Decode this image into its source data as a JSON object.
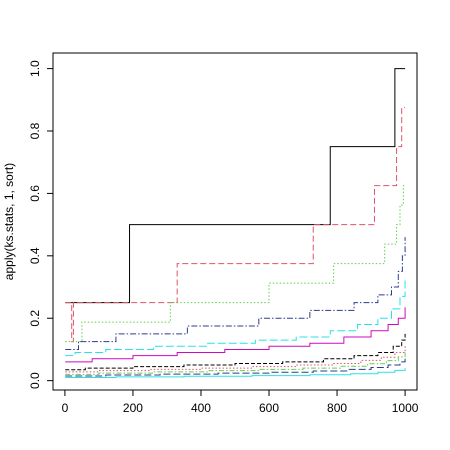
{
  "chart_data": {
    "type": "line",
    "title": "",
    "xlabel": "",
    "ylabel": "apply(ks.stats, 1, sort)",
    "xlim": [
      -35,
      1035
    ],
    "ylim": [
      -0.03,
      1.05
    ],
    "x_ticks": [
      0,
      200,
      400,
      600,
      800,
      1000
    ],
    "y_ticks": [
      0.0,
      0.2,
      0.4,
      0.6,
      0.8,
      1.0
    ],
    "x_tick_labels": [
      "0",
      "200",
      "400",
      "600",
      "800",
      "1000"
    ],
    "y_tick_labels": [
      "0.0",
      "0.2",
      "0.4",
      "0.6",
      "0.8",
      "1.0"
    ],
    "grid": false,
    "legend": "none",
    "series": [
      {
        "color": "#000000",
        "dash": "",
        "steps": [
          [
            1,
            0.25
          ],
          [
            190,
            0.5
          ],
          [
            780,
            0.75
          ],
          [
            970,
            1.0
          ],
          [
            1000,
            1.0
          ]
        ]
      },
      {
        "color": "#df536b",
        "dash": "6,3",
        "steps": [
          [
            1,
            0.25
          ],
          [
            20,
            0.125
          ],
          [
            25,
            0.25
          ],
          [
            330,
            0.375
          ],
          [
            730,
            0.5
          ],
          [
            910,
            0.625
          ],
          [
            975,
            0.75
          ],
          [
            990,
            0.875
          ],
          [
            1000,
            0.875
          ]
        ]
      },
      {
        "color": "#61d04f",
        "dash": "1.5,2",
        "steps": [
          [
            1,
            0.125
          ],
          [
            50,
            0.1875
          ],
          [
            310,
            0.25
          ],
          [
            600,
            0.3125
          ],
          [
            790,
            0.375
          ],
          [
            940,
            0.4375
          ],
          [
            975,
            0.5
          ],
          [
            985,
            0.5625
          ],
          [
            995,
            0.625
          ],
          [
            1000,
            0.625
          ]
        ]
      },
      {
        "color": "#2f3b8f",
        "dash": "6,2,1.5,2",
        "steps": [
          [
            1,
            0.1
          ],
          [
            40,
            0.125
          ],
          [
            150,
            0.15
          ],
          [
            360,
            0.175
          ],
          [
            570,
            0.2
          ],
          [
            720,
            0.225
          ],
          [
            850,
            0.25
          ],
          [
            920,
            0.275
          ],
          [
            960,
            0.3
          ],
          [
            980,
            0.35
          ],
          [
            992,
            0.4
          ],
          [
            1000,
            0.46
          ]
        ]
      },
      {
        "color": "#28e2e5",
        "dash": "8,3",
        "steps": [
          [
            1,
            0.08
          ],
          [
            30,
            0.09
          ],
          [
            120,
            0.1
          ],
          [
            260,
            0.11
          ],
          [
            420,
            0.12
          ],
          [
            560,
            0.13
          ],
          [
            680,
            0.14
          ],
          [
            780,
            0.16
          ],
          [
            860,
            0.18
          ],
          [
            920,
            0.2
          ],
          [
            960,
            0.23
          ],
          [
            985,
            0.27
          ],
          [
            1000,
            0.33
          ]
        ]
      },
      {
        "color": "#cd0bbc",
        "dash": "",
        "steps": [
          [
            1,
            0.06
          ],
          [
            80,
            0.07
          ],
          [
            200,
            0.08
          ],
          [
            330,
            0.09
          ],
          [
            470,
            0.1
          ],
          [
            600,
            0.11
          ],
          [
            720,
            0.12
          ],
          [
            820,
            0.14
          ],
          [
            900,
            0.16
          ],
          [
            950,
            0.18
          ],
          [
            980,
            0.2
          ],
          [
            1000,
            0.235
          ]
        ]
      },
      {
        "color": "#000000",
        "dash": "4,2",
        "steps": [
          [
            1,
            0.035
          ],
          [
            60,
            0.04
          ],
          [
            200,
            0.045
          ],
          [
            350,
            0.05
          ],
          [
            500,
            0.055
          ],
          [
            640,
            0.06
          ],
          [
            760,
            0.07
          ],
          [
            850,
            0.08
          ],
          [
            920,
            0.09
          ],
          [
            965,
            0.11
          ],
          [
            990,
            0.13
          ],
          [
            1000,
            0.15
          ]
        ]
      },
      {
        "color": "#df536b",
        "dash": "1.5,2",
        "steps": [
          [
            1,
            0.028
          ],
          [
            100,
            0.032
          ],
          [
            250,
            0.036
          ],
          [
            400,
            0.04
          ],
          [
            550,
            0.045
          ],
          [
            680,
            0.05
          ],
          [
            790,
            0.055
          ],
          [
            870,
            0.065
          ],
          [
            930,
            0.075
          ],
          [
            970,
            0.09
          ],
          [
            1000,
            0.11
          ]
        ]
      },
      {
        "color": "#61d04f",
        "dash": "5,2,1.5,2",
        "steps": [
          [
            1,
            0.02
          ],
          [
            100,
            0.024
          ],
          [
            260,
            0.028
          ],
          [
            420,
            0.032
          ],
          [
            570,
            0.036
          ],
          [
            700,
            0.04
          ],
          [
            810,
            0.046
          ],
          [
            890,
            0.054
          ],
          [
            945,
            0.064
          ],
          [
            980,
            0.076
          ],
          [
            1000,
            0.09
          ]
        ]
      },
      {
        "color": "#2f3b8f",
        "dash": "7,3",
        "steps": [
          [
            1,
            0.015
          ],
          [
            120,
            0.018
          ],
          [
            280,
            0.021
          ],
          [
            450,
            0.024
          ],
          [
            600,
            0.027
          ],
          [
            730,
            0.031
          ],
          [
            830,
            0.036
          ],
          [
            900,
            0.042
          ],
          [
            950,
            0.05
          ],
          [
            985,
            0.06
          ],
          [
            1000,
            0.07
          ]
        ]
      },
      {
        "color": "#28e2e5",
        "dash": "",
        "steps": [
          [
            1,
            0.01
          ],
          [
            150,
            0.012
          ],
          [
            350,
            0.014
          ],
          [
            550,
            0.016
          ],
          [
            720,
            0.019
          ],
          [
            840,
            0.022
          ],
          [
            920,
            0.027
          ],
          [
            970,
            0.033
          ],
          [
            1000,
            0.04
          ]
        ]
      }
    ]
  }
}
